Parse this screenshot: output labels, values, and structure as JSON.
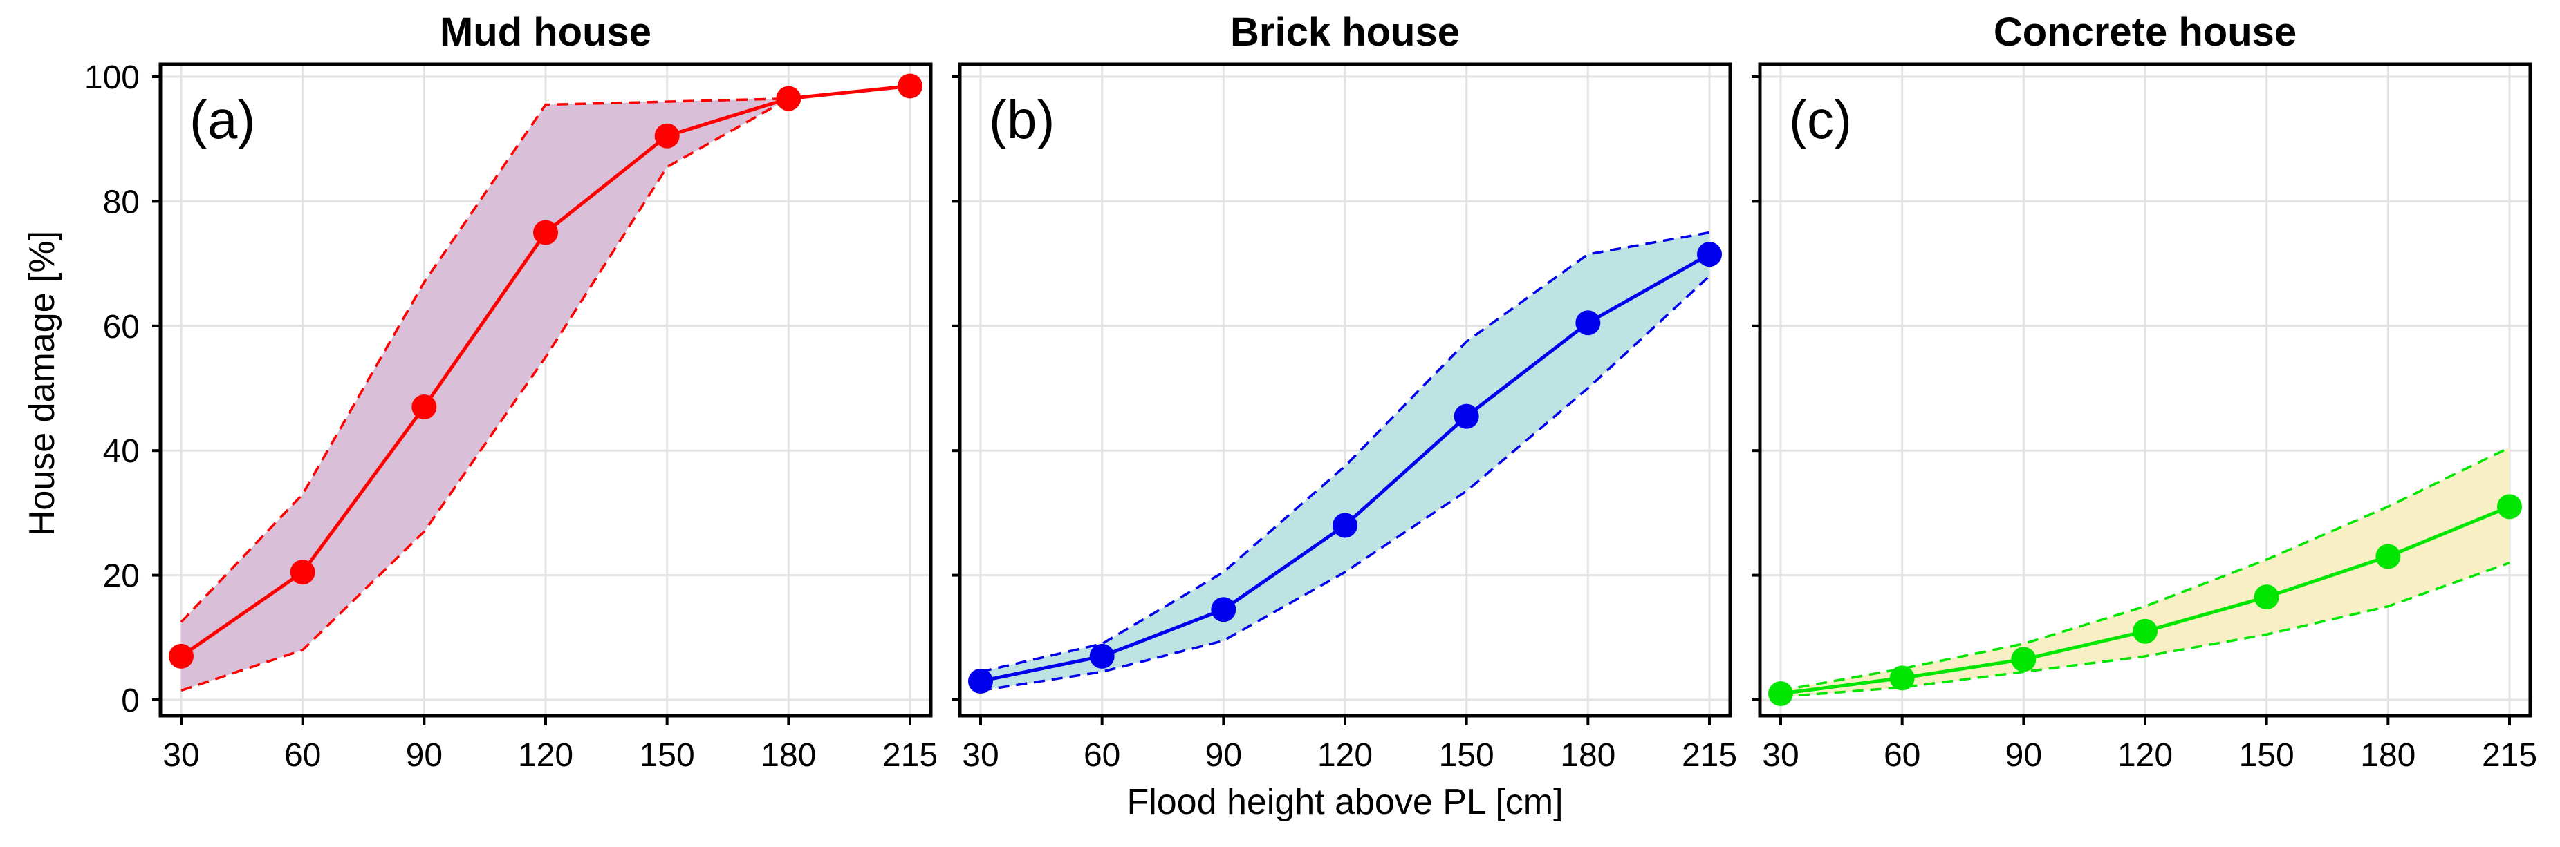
{
  "figure": {
    "ylabel": "House damage [%]",
    "xlabel": "Flood height above PL [cm]"
  },
  "chart_data": [
    {
      "type": "line",
      "title": "Mud house",
      "panel_tag": "(a)",
      "color": "#ff0000",
      "fill_color": "#d9bfd8",
      "x": [
        30,
        60,
        90,
        120,
        150,
        180,
        215
      ],
      "xticks": [
        "30",
        "60",
        "90",
        "120",
        "150",
        "180",
        "215"
      ],
      "series": [
        {
          "name": "mean",
          "values": [
            7,
            20.5,
            47,
            75,
            90.5,
            96.5,
            98.5
          ]
        },
        {
          "name": "upper",
          "values": [
            12.5,
            33,
            67,
            95.5,
            96,
            96.5,
            null
          ]
        },
        {
          "name": "lower",
          "values": [
            1.5,
            8,
            27,
            55,
            85.5,
            96.5,
            null
          ]
        }
      ],
      "ylim": [
        0,
        100
      ],
      "yticks": [
        "0",
        "20",
        "40",
        "60",
        "80",
        "100"
      ],
      "grid": true
    },
    {
      "type": "line",
      "title": "Brick house",
      "panel_tag": "(b)",
      "color": "#0000ee",
      "fill_color": "#bfe3e3",
      "x": [
        30,
        60,
        90,
        120,
        150,
        180,
        215
      ],
      "xticks": [
        "30",
        "60",
        "90",
        "120",
        "150",
        "180",
        "215"
      ],
      "series": [
        {
          "name": "mean",
          "values": [
            3,
            7,
            14.5,
            28,
            45.5,
            60.5,
            71.5
          ]
        },
        {
          "name": "upper",
          "values": [
            4.5,
            9,
            20.5,
            37.5,
            57.5,
            71.5,
            75
          ]
        },
        {
          "name": "lower",
          "values": [
            1.5,
            4.5,
            9.5,
            20.5,
            33.5,
            50,
            68
          ]
        }
      ],
      "ylim": [
        0,
        100
      ],
      "yticks": [
        "0",
        "20",
        "40",
        "60",
        "80",
        "100"
      ],
      "grid": true
    },
    {
      "type": "line",
      "title": "Concrete house",
      "panel_tag": "(c)",
      "color": "#00e600",
      "fill_color": "#f8f0c4",
      "x": [
        30,
        60,
        90,
        120,
        150,
        180,
        215
      ],
      "xticks": [
        "30",
        "60",
        "90",
        "120",
        "150",
        "180",
        "215"
      ],
      "series": [
        {
          "name": "mean",
          "values": [
            1,
            3.5,
            6.5,
            11,
            16.5,
            23,
            31
          ]
        },
        {
          "name": "upper",
          "values": [
            1.5,
            5,
            9,
            15,
            22.5,
            31,
            40.5
          ]
        },
        {
          "name": "lower",
          "values": [
            0.5,
            2,
            4.5,
            7,
            10.5,
            15,
            22
          ]
        }
      ],
      "ylim": [
        0,
        100
      ],
      "yticks": [
        "0",
        "20",
        "40",
        "60",
        "80",
        "100"
      ],
      "grid": true
    }
  ]
}
